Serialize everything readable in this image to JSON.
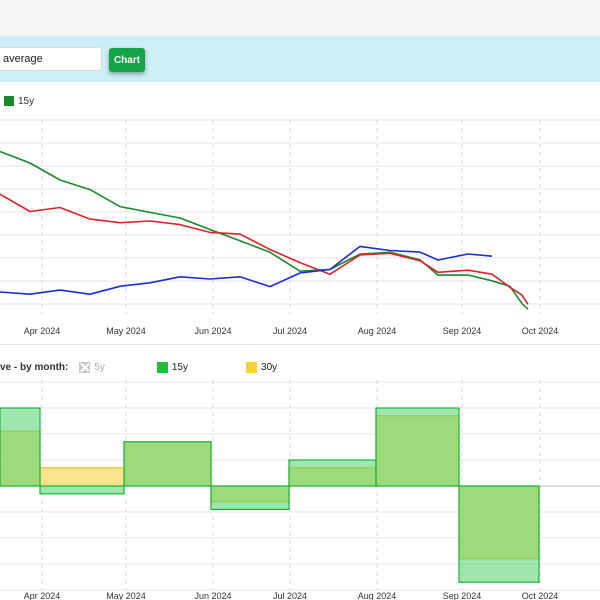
{
  "controls": {
    "average_value": "average",
    "chart_button": "Chart"
  },
  "legend_top": [
    {
      "label": "15y",
      "color": "#1a8a2e"
    }
  ],
  "legend_bottom": {
    "title": "ve - by month:",
    "items": [
      {
        "label": "5y",
        "state": "disabled",
        "color": "#c8c8c8"
      },
      {
        "label": "15y",
        "state": "active",
        "color": "#1fbf3a"
      },
      {
        "label": "30y",
        "state": "active",
        "color": "#f7d234"
      }
    ]
  },
  "chart_data": [
    {
      "type": "line",
      "x_ticks": [
        "Apr 2024",
        "May 2024",
        "Jun 2024",
        "Jul 2024",
        "Aug 2024",
        "Sep 2024",
        "Oct 2024"
      ],
      "grid": true,
      "series": [
        {
          "name": "15y",
          "color": "#1a8a2e",
          "points": [
            [
              0,
              0.85
            ],
            [
              0.05,
              0.8
            ],
            [
              0.1,
              0.7
            ],
            [
              0.15,
              0.66
            ],
            [
              0.2,
              0.56
            ],
            [
              0.25,
              0.54
            ],
            [
              0.3,
              0.5
            ],
            [
              0.35,
              0.45
            ],
            [
              0.4,
              0.38
            ],
            [
              0.45,
              0.33
            ],
            [
              0.5,
              0.22
            ],
            [
              0.55,
              0.24
            ],
            [
              0.6,
              0.31
            ],
            [
              0.65,
              0.33
            ],
            [
              0.7,
              0.28
            ],
            [
              0.73,
              0.21
            ],
            [
              0.78,
              0.2
            ],
            [
              0.82,
              0.18
            ],
            [
              0.85,
              0.14
            ],
            [
              0.87,
              0.06
            ],
            [
              0.88,
              0.02
            ]
          ]
        },
        {
          "color": "#e0212c",
          "points": [
            [
              0,
              0.62
            ],
            [
              0.05,
              0.55
            ],
            [
              0.1,
              0.55
            ],
            [
              0.15,
              0.51
            ],
            [
              0.2,
              0.47
            ],
            [
              0.25,
              0.5
            ],
            [
              0.3,
              0.46
            ],
            [
              0.35,
              0.44
            ],
            [
              0.4,
              0.41
            ],
            [
              0.45,
              0.35
            ],
            [
              0.5,
              0.26
            ],
            [
              0.55,
              0.22
            ],
            [
              0.6,
              0.3
            ],
            [
              0.65,
              0.33
            ],
            [
              0.7,
              0.27
            ],
            [
              0.73,
              0.23
            ],
            [
              0.78,
              0.22
            ],
            [
              0.82,
              0.22
            ],
            [
              0.85,
              0.13
            ],
            [
              0.87,
              0.11
            ],
            [
              0.88,
              0.04
            ]
          ]
        },
        {
          "color": "#1a2ecf",
          "points": [
            [
              0,
              0.1
            ],
            [
              0.05,
              0.12
            ],
            [
              0.1,
              0.11
            ],
            [
              0.15,
              0.12
            ],
            [
              0.2,
              0.13
            ],
            [
              0.25,
              0.18
            ],
            [
              0.3,
              0.18
            ],
            [
              0.35,
              0.2
            ],
            [
              0.4,
              0.18
            ],
            [
              0.45,
              0.16
            ],
            [
              0.5,
              0.2
            ],
            [
              0.55,
              0.25
            ],
            [
              0.6,
              0.34
            ],
            [
              0.65,
              0.35
            ],
            [
              0.7,
              0.31
            ],
            [
              0.73,
              0.3
            ],
            [
              0.78,
              0.3
            ],
            [
              0.82,
              0.32
            ]
          ]
        }
      ]
    },
    {
      "type": "bar",
      "x_ticks": [
        "Apr 2024",
        "May 2024",
        "Jun 2024",
        "Jul 2024",
        "Aug 2024",
        "Sep 2024",
        "Oct 2024"
      ],
      "grid": true,
      "series": [
        {
          "name": "15y",
          "color": "#1fbf3a",
          "values": [
            3.0,
            -0.3,
            1.7,
            -0.9,
            1.0,
            3.0,
            -3.7
          ]
        },
        {
          "name": "30y",
          "color": "#f7d234",
          "values": [
            2.1,
            0.7,
            1.7,
            -0.6,
            0.7,
            2.7,
            -2.8
          ]
        }
      ]
    }
  ]
}
